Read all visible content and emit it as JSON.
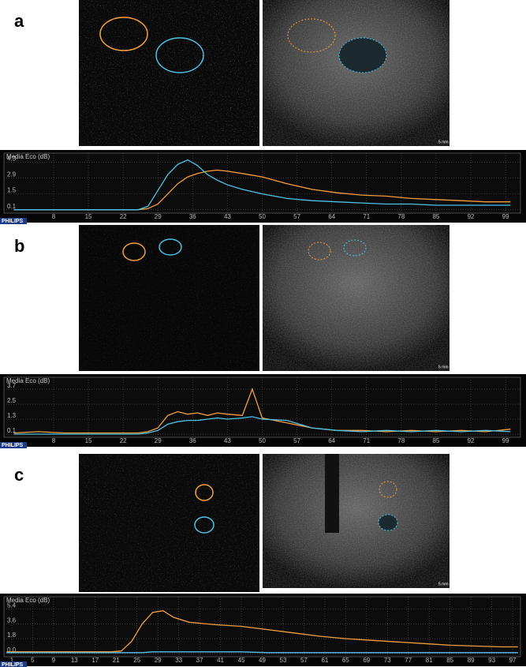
{
  "chart_data": [
    {
      "type": "line",
      "panel_label": "a",
      "title": "Media Eco (dB)",
      "brand": "PHILIPS",
      "scale_label": "5 mm",
      "x": [
        0,
        5,
        10,
        15,
        20,
        25,
        27,
        29,
        31,
        33,
        35,
        37,
        39,
        41,
        43,
        46,
        50,
        55,
        60,
        65,
        70,
        75,
        80,
        85,
        90,
        95,
        100
      ],
      "series": [
        {
          "name": "orange",
          "color": "#f5a040",
          "values": [
            0.1,
            0.1,
            0.1,
            0.1,
            0.1,
            0.1,
            0.2,
            0.6,
            1.5,
            2.4,
            3.0,
            3.3,
            3.5,
            3.6,
            3.5,
            3.3,
            3.0,
            2.4,
            1.9,
            1.6,
            1.4,
            1.3,
            1.1,
            1.0,
            0.9,
            0.8,
            0.8
          ]
        },
        {
          "name": "blue",
          "color": "#4fc3e8",
          "values": [
            0.1,
            0.1,
            0.1,
            0.1,
            0.1,
            0.1,
            0.4,
            1.8,
            3.2,
            4.1,
            4.5,
            4.0,
            3.2,
            2.7,
            2.3,
            1.9,
            1.5,
            1.1,
            0.9,
            0.8,
            0.7,
            0.6,
            0.6,
            0.5,
            0.5,
            0.5,
            0.5
          ]
        }
      ],
      "xlim": [
        -2,
        102
      ],
      "xticks": [
        8,
        15,
        22,
        29,
        36,
        43,
        50,
        57,
        64,
        71,
        78,
        85,
        92,
        99
      ],
      "ylim": [
        -0.2,
        5.1
      ],
      "yticks": [
        0.1,
        1.5,
        2.9,
        4.3
      ],
      "grid": true
    },
    {
      "type": "line",
      "panel_label": "b",
      "title": "Media Eco (dB)",
      "brand": "PHILIPS",
      "scale_label": "5 mm",
      "x": [
        0,
        5,
        10,
        15,
        20,
        25,
        27,
        29,
        31,
        33,
        35,
        37,
        39,
        41,
        43,
        46,
        48,
        50,
        55,
        60,
        65,
        70,
        75,
        80,
        85,
        90,
        95,
        100
      ],
      "series": [
        {
          "name": "orange",
          "color": "#f5a040",
          "values": [
            0.2,
            0.3,
            0.2,
            0.2,
            0.2,
            0.2,
            0.3,
            0.6,
            1.6,
            1.9,
            1.7,
            1.8,
            1.6,
            1.8,
            1.7,
            1.6,
            3.7,
            1.4,
            1.0,
            0.6,
            0.4,
            0.4,
            0.3,
            0.4,
            0.3,
            0.4,
            0.3,
            0.5
          ]
        },
        {
          "name": "blue",
          "color": "#4fc3e8",
          "values": [
            0.1,
            0.1,
            0.1,
            0.1,
            0.1,
            0.1,
            0.2,
            0.4,
            0.9,
            1.1,
            1.2,
            1.2,
            1.3,
            1.4,
            1.3,
            1.4,
            1.5,
            1.3,
            1.2,
            0.6,
            0.4,
            0.3,
            0.4,
            0.3,
            0.4,
            0.3,
            0.4,
            0.3
          ]
        }
      ],
      "xlim": [
        -2,
        102
      ],
      "xticks": [
        8,
        15,
        22,
        29,
        36,
        43,
        50,
        57,
        64,
        71,
        78,
        85,
        92,
        99
      ],
      "ylim": [
        -0.15,
        4.65
      ],
      "yticks": [
        0.1,
        1.3,
        2.5,
        3.7
      ],
      "grid": true
    },
    {
      "type": "line",
      "panel_label": "c",
      "title": "Media Eco (dB)",
      "brand": "PHILIPS",
      "scale_label": "5 mm",
      "x": [
        0,
        5,
        10,
        15,
        20,
        22,
        24,
        26,
        28,
        30,
        32,
        35,
        40,
        45,
        50,
        55,
        60,
        65,
        70,
        75,
        80,
        85,
        90,
        95,
        98
      ],
      "series": [
        {
          "name": "orange",
          "color": "#f5a040",
          "values": [
            0.2,
            0.2,
            0.2,
            0.2,
            0.2,
            0.3,
            1.5,
            3.6,
            5.0,
            5.2,
            4.4,
            3.8,
            3.5,
            3.3,
            2.9,
            2.5,
            2.1,
            1.8,
            1.6,
            1.4,
            1.2,
            1.0,
            0.9,
            0.8,
            0.8
          ]
        },
        {
          "name": "blue",
          "color": "#4fc3e8",
          "values": [
            0.1,
            0.1,
            0.1,
            0.1,
            0.1,
            0.1,
            0.1,
            0.1,
            0.2,
            0.2,
            0.2,
            0.2,
            0.2,
            0.2,
            0.1,
            0.1,
            0.1,
            0.1,
            0.1,
            0.1,
            0.1,
            0.1,
            0.1,
            0.1,
            0.1
          ]
        }
      ],
      "xlim": [
        -0.5,
        98.5
      ],
      "xticks": [
        1,
        5,
        9,
        13,
        17,
        21,
        25,
        29,
        33,
        37,
        41,
        45,
        49,
        53,
        57,
        61,
        65,
        69,
        73,
        77,
        81,
        85,
        89,
        93,
        97
      ],
      "ylim": [
        -0.4,
        6.9
      ],
      "yticks": [
        {
          "value": 0,
          "label": "0.0"
        },
        1.8,
        3.6,
        5.4
      ],
      "grid": true
    }
  ]
}
